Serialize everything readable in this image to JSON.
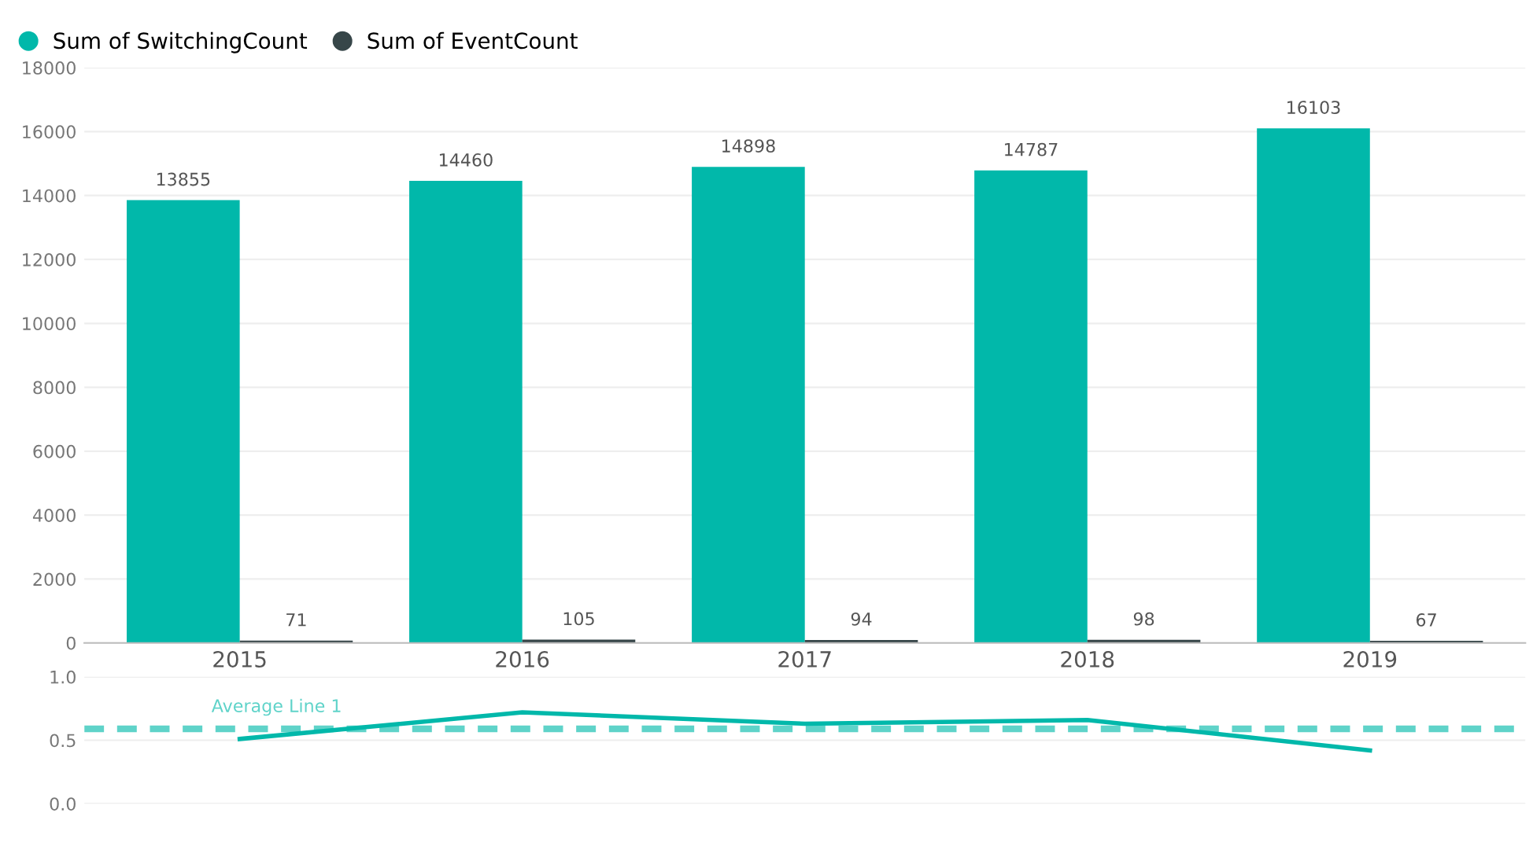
{
  "chart_data": [
    {
      "type": "bar",
      "categories": [
        "2015",
        "2016",
        "2017",
        "2018",
        "2019"
      ],
      "series": [
        {
          "name": "Sum of SwitchingCount",
          "color": "#01b8aa",
          "values": [
            13855,
            14460,
            14898,
            14787,
            16103
          ]
        },
        {
          "name": "Sum of EventCount",
          "color": "#374649",
          "values": [
            71,
            105,
            94,
            98,
            67
          ]
        }
      ],
      "ylim": [
        0,
        18000
      ],
      "yticks": [
        0,
        2000,
        4000,
        6000,
        8000,
        10000,
        12000,
        14000,
        16000,
        18000
      ],
      "grid": "y",
      "legend": "top left",
      "data_labels": true
    },
    {
      "type": "line",
      "categories": [
        null,
        null,
        null,
        null,
        null
      ],
      "series": [
        {
          "color": "#01b8aa",
          "values": [
            0.51,
            0.72,
            0.63,
            0.66,
            0.42
          ]
        }
      ],
      "ylim": [
        0,
        1
      ],
      "yticks": [
        {
          "value": 0,
          "label": "0.0"
        },
        {
          "value": 0.5,
          "label": "0.5"
        },
        {
          "value": 1,
          "label": "1.0"
        }
      ],
      "grid": "y",
      "ref_lines": [
        {
          "axis": "y",
          "value": 0.59,
          "label": "Average Line 1",
          "color": "#5fd3c9",
          "line_style": "dashed"
        }
      ]
    }
  ]
}
